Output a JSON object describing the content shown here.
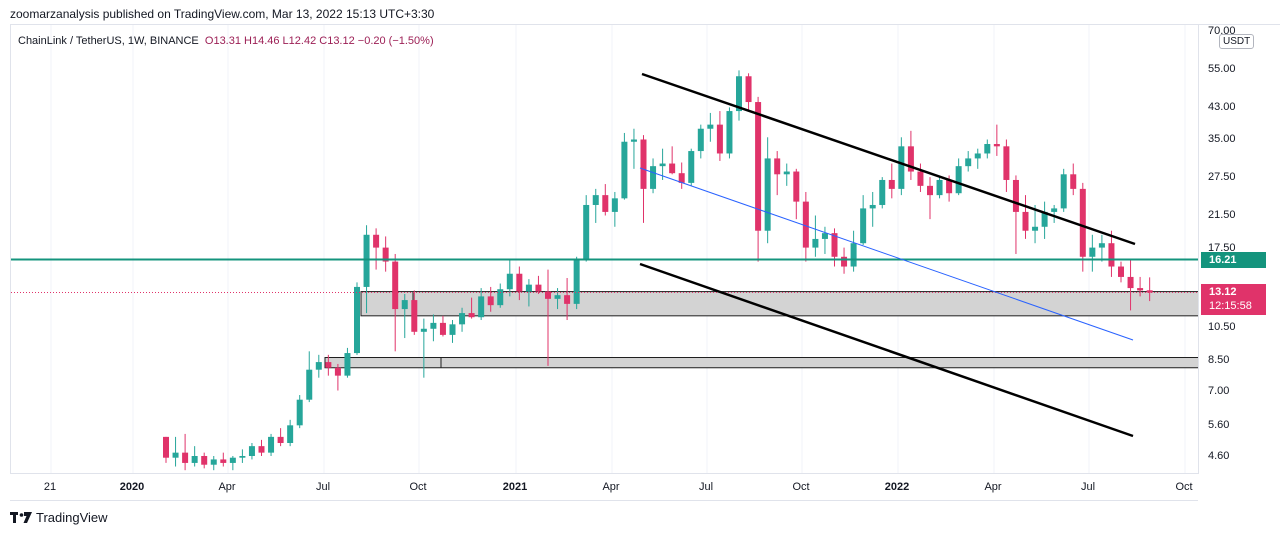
{
  "header": {
    "publish_line": "zoomarzanalysis published on TradingView.com, Mar 13, 2022 15:13 UTC+3:30"
  },
  "legend": {
    "symbol": "ChainLink / TetherUS, 1W, BINANCE",
    "ohlc": "O13.31  H14.46  L12.42  C13.12  −0.20 (−1.50%)"
  },
  "price_scale": {
    "currency": "USDT",
    "ticks": [
      "70.00",
      "55.00",
      "43.00",
      "35.00",
      "27.50",
      "21.50",
      "17.50",
      "10.50",
      "8.50",
      "7.00",
      "5.60",
      "4.60"
    ]
  },
  "time_scale": {
    "ticks": [
      {
        "label": "21",
        "major": false
      },
      {
        "label": "2020",
        "major": true
      },
      {
        "label": "Apr",
        "major": false
      },
      {
        "label": "Jul",
        "major": false
      },
      {
        "label": "Oct",
        "major": false
      },
      {
        "label": "2021",
        "major": true
      },
      {
        "label": "Apr",
        "major": false
      },
      {
        "label": "Jul",
        "major": false
      },
      {
        "label": "Oct",
        "major": false
      },
      {
        "label": "2022",
        "major": true
      },
      {
        "label": "Apr",
        "major": false
      },
      {
        "label": "Jul",
        "major": false
      },
      {
        "label": "Oct",
        "major": false
      }
    ]
  },
  "tags": {
    "level_label": "16.21",
    "last_price": "13.12",
    "countdown": "12:15:58"
  },
  "colors": {
    "up": "#26a69a",
    "down": "#e0336a",
    "level_line": "#14947d",
    "trend_mid": "#2962ff",
    "zone_fill": "#d1d1d1"
  },
  "branding": {
    "name": "TradingView"
  },
  "chart_data": {
    "type": "candlestick",
    "interval": "1W",
    "y_scale": "log",
    "ylim": [
      4.2,
      70
    ],
    "ohlc_weekly": [
      [
        5.2,
        5.2,
        4.4,
        4.55
      ],
      [
        4.55,
        5.2,
        4.3,
        4.7
      ],
      [
        4.7,
        5.3,
        4.2,
        4.4
      ],
      [
        4.4,
        4.9,
        4.3,
        4.6
      ],
      [
        4.6,
        4.7,
        4.25,
        4.35
      ],
      [
        4.35,
        4.6,
        4.2,
        4.5
      ],
      [
        4.5,
        4.7,
        4.3,
        4.4
      ],
      [
        4.4,
        4.6,
        4.2,
        4.55
      ],
      [
        4.55,
        4.8,
        4.4,
        4.6
      ],
      [
        4.6,
        5.0,
        4.5,
        4.9
      ],
      [
        4.9,
        5.1,
        4.6,
        4.7
      ],
      [
        4.7,
        5.3,
        4.6,
        5.2
      ],
      [
        5.2,
        5.5,
        4.9,
        5.0
      ],
      [
        5.0,
        5.8,
        4.9,
        5.6
      ],
      [
        5.6,
        6.8,
        5.5,
        6.6
      ],
      [
        6.6,
        9.0,
        6.5,
        8.0
      ],
      [
        8.0,
        8.8,
        7.6,
        8.4
      ],
      [
        8.4,
        8.8,
        7.7,
        8.1
      ],
      [
        8.1,
        8.3,
        7.0,
        7.7
      ],
      [
        7.7,
        9.2,
        7.6,
        8.9
      ],
      [
        8.9,
        14.0,
        8.8,
        13.6
      ],
      [
        13.6,
        20.2,
        11.5,
        19.0
      ],
      [
        19.0,
        19.8,
        15.2,
        17.5
      ],
      [
        17.5,
        18.8,
        15.0,
        16.0
      ],
      [
        16.0,
        16.8,
        9.0,
        11.8
      ],
      [
        11.8,
        13.0,
        9.8,
        12.5
      ],
      [
        12.5,
        13.3,
        10.0,
        10.2
      ],
      [
        10.2,
        11.1,
        7.6,
        10.4
      ],
      [
        10.4,
        11.4,
        9.6,
        10.8
      ],
      [
        10.8,
        11.3,
        9.9,
        10.0
      ],
      [
        10.0,
        11.0,
        9.5,
        10.7
      ],
      [
        10.7,
        11.9,
        10.2,
        11.5
      ],
      [
        11.5,
        12.7,
        11.1,
        11.2
      ],
      [
        11.2,
        13.5,
        11.0,
        12.8
      ],
      [
        12.8,
        13.6,
        11.6,
        12.1
      ],
      [
        12.1,
        13.9,
        11.9,
        13.4
      ],
      [
        13.4,
        16.2,
        12.8,
        14.8
      ],
      [
        14.8,
        15.5,
        12.5,
        13.2
      ],
      [
        13.2,
        14.3,
        12.0,
        13.8
      ],
      [
        13.8,
        14.6,
        13.0,
        13.2
      ],
      [
        13.2,
        15.2,
        8.2,
        12.6
      ],
      [
        12.6,
        13.5,
        11.8,
        12.9
      ],
      [
        12.9,
        14.4,
        11.0,
        12.2
      ],
      [
        12.2,
        16.5,
        11.8,
        16.2
      ],
      [
        16.2,
        24.5,
        16.0,
        23.0
      ],
      [
        23.0,
        25.5,
        20.5,
        24.5
      ],
      [
        24.5,
        26.3,
        21.5,
        22.0
      ],
      [
        22.0,
        25.0,
        20.0,
        24.0
      ],
      [
        24.0,
        36.5,
        23.8,
        34.5
      ],
      [
        34.5,
        37.5,
        29.0,
        35.0
      ],
      [
        35.0,
        36.0,
        20.5,
        25.5
      ],
      [
        25.5,
        31.0,
        24.8,
        29.5
      ],
      [
        29.5,
        33.0,
        27.0,
        30.0
      ],
      [
        30.0,
        33.5,
        28.0,
        28.2
      ],
      [
        28.2,
        30.2,
        25.5,
        26.5
      ],
      [
        26.5,
        33.0,
        26.0,
        32.5
      ],
      [
        32.5,
        38.5,
        31.0,
        37.5
      ],
      [
        37.5,
        41.5,
        34.5,
        38.5
      ],
      [
        38.5,
        42.0,
        30.5,
        32.0
      ],
      [
        32.0,
        43.0,
        31.0,
        42.0
      ],
      [
        42.0,
        54.5,
        39.5,
        52.5
      ],
      [
        52.5,
        53.5,
        42.0,
        44.5
      ],
      [
        44.5,
        46.0,
        16.0,
        19.5
      ],
      [
        19.5,
        35.5,
        18.0,
        31.0
      ],
      [
        31.0,
        32.5,
        24.5,
        28.0
      ],
      [
        28.0,
        30.0,
        26.0,
        28.5
      ],
      [
        28.5,
        29.0,
        21.0,
        23.5
      ],
      [
        23.5,
        25.0,
        16.0,
        17.5
      ],
      [
        17.5,
        21.5,
        16.5,
        18.5
      ],
      [
        18.5,
        20.0,
        16.8,
        19.2
      ],
      [
        19.2,
        19.8,
        15.5,
        16.5
      ],
      [
        16.5,
        17.5,
        14.8,
        15.5
      ],
      [
        15.5,
        19.5,
        15.0,
        18.0
      ],
      [
        18.0,
        24.5,
        17.8,
        22.5
      ],
      [
        22.5,
        25.0,
        20.0,
        23.0
      ],
      [
        23.0,
        27.5,
        22.5,
        27.0
      ],
      [
        27.0,
        30.0,
        24.0,
        25.5
      ],
      [
        25.5,
        35.5,
        24.5,
        33.5
      ],
      [
        33.5,
        37.0,
        27.0,
        28.5
      ],
      [
        28.5,
        30.0,
        25.0,
        26.0
      ],
      [
        26.0,
        27.5,
        21.0,
        24.5
      ],
      [
        24.5,
        27.5,
        24.0,
        27.0
      ],
      [
        27.0,
        27.8,
        23.5,
        24.8
      ],
      [
        24.8,
        31.0,
        24.5,
        29.5
      ],
      [
        29.5,
        32.5,
        28.5,
        31.0
      ],
      [
        31.0,
        33.0,
        29.0,
        32.0
      ],
      [
        32.0,
        35.0,
        31.0,
        34.0
      ],
      [
        34.0,
        38.5,
        31.5,
        33.5
      ],
      [
        33.5,
        35.0,
        25.0,
        27.0
      ],
      [
        27.0,
        27.8,
        16.8,
        22.0
      ],
      [
        22.0,
        24.5,
        18.5,
        19.5
      ],
      [
        19.5,
        23.0,
        18.0,
        20.0
      ],
      [
        20.0,
        23.5,
        18.5,
        22.0
      ],
      [
        22.0,
        23.0,
        20.5,
        22.5
      ],
      [
        22.5,
        29.0,
        22.0,
        28.0
      ],
      [
        28.0,
        30.0,
        24.5,
        25.5
      ],
      [
        25.5,
        26.5,
        15.0,
        16.5
      ],
      [
        16.5,
        19.0,
        15.0,
        17.5
      ],
      [
        17.5,
        19.0,
        16.0,
        18.0
      ],
      [
        18.0,
        19.5,
        14.5,
        15.5
      ],
      [
        15.5,
        16.0,
        14.0,
        14.5
      ],
      [
        14.5,
        16.2,
        11.7,
        13.5
      ],
      [
        13.5,
        14.5,
        12.8,
        13.3
      ],
      [
        13.31,
        14.46,
        12.42,
        13.12
      ]
    ],
    "horizontal_level": 16.21,
    "last_price": 13.12,
    "support_zones": [
      {
        "low": 11.3,
        "high": 13.2
      },
      {
        "low": 8.1,
        "high": 8.65
      }
    ]
  }
}
